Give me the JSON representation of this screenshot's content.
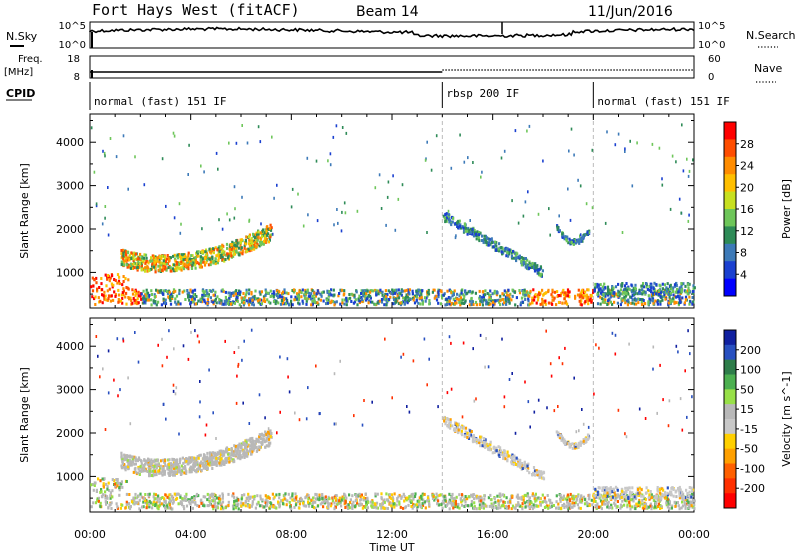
{
  "header": {
    "title": "Fort Hays West (fitACF)",
    "beam": "Beam 14",
    "date": "11/Jun/2016"
  },
  "top_panels": {
    "nsky_label": "N.Sky",
    "nsky_ticks": [
      "10^5",
      "10^0"
    ],
    "nsearch_label": "N.Search",
    "freq_label": "Freq.",
    "freq_unit": "[MHz]",
    "freq_ticks": [
      "18",
      "8"
    ],
    "nave_label": "Nave",
    "nave_ticks": [
      "60",
      "0"
    ],
    "cpid_label": "CPID",
    "cpid_segments": [
      {
        "label": "normal (fast) 151 IF",
        "start_h": 0,
        "end_h": 14
      },
      {
        "label": "rbsp 200 IF",
        "start_h": 14,
        "end_h": 20
      },
      {
        "label": "normal (fast) 151 IF",
        "start_h": 20,
        "end_h": 24
      }
    ]
  },
  "chart_data": [
    {
      "type": "heatmap",
      "name": "power",
      "ylabel": "Slant Range [km]",
      "yticks": [
        1000,
        2000,
        3000,
        4000
      ],
      "ylim": [
        180,
        4650
      ],
      "xlim_h": [
        0,
        24
      ],
      "colorbar_label": "Power [dB]",
      "colorbar_ticks": [
        "28",
        "24",
        "20",
        "16",
        "12",
        "8",
        "4"
      ],
      "colorbar_colors": [
        "#ff0000",
        "#ff4d00",
        "#ff8c00",
        "#ffbf00",
        "#c8e020",
        "#6ec65a",
        "#2e8b57",
        "#3d7ab8",
        "#1a40d0",
        "#0000ff"
      ]
    },
    {
      "type": "heatmap",
      "name": "velocity",
      "ylabel": "Slant Range [km]",
      "yticks": [
        1000,
        2000,
        3000,
        4000
      ],
      "ylim": [
        180,
        4650
      ],
      "xlim_h": [
        0,
        24
      ],
      "colorbar_label": "Velocity [m s^-1]",
      "colorbar_ticks": [
        "200",
        "100",
        "50",
        "15",
        "-15",
        "-50",
        "-100",
        "-200"
      ],
      "colorbar_colors": [
        "#1020a0",
        "#2850c0",
        "#2e7d4a",
        "#4cb050",
        "#98e048",
        "#b8b8b8",
        "#c8c8c8",
        "#ffd000",
        "#ffa000",
        "#ff6000",
        "#ff3000",
        "#ff0000"
      ]
    }
  ],
  "x_axis": {
    "ticks": [
      "00:00",
      "04:00",
      "08:00",
      "12:00",
      "16:00",
      "20:00",
      "00:00"
    ],
    "label": "Time UT"
  }
}
